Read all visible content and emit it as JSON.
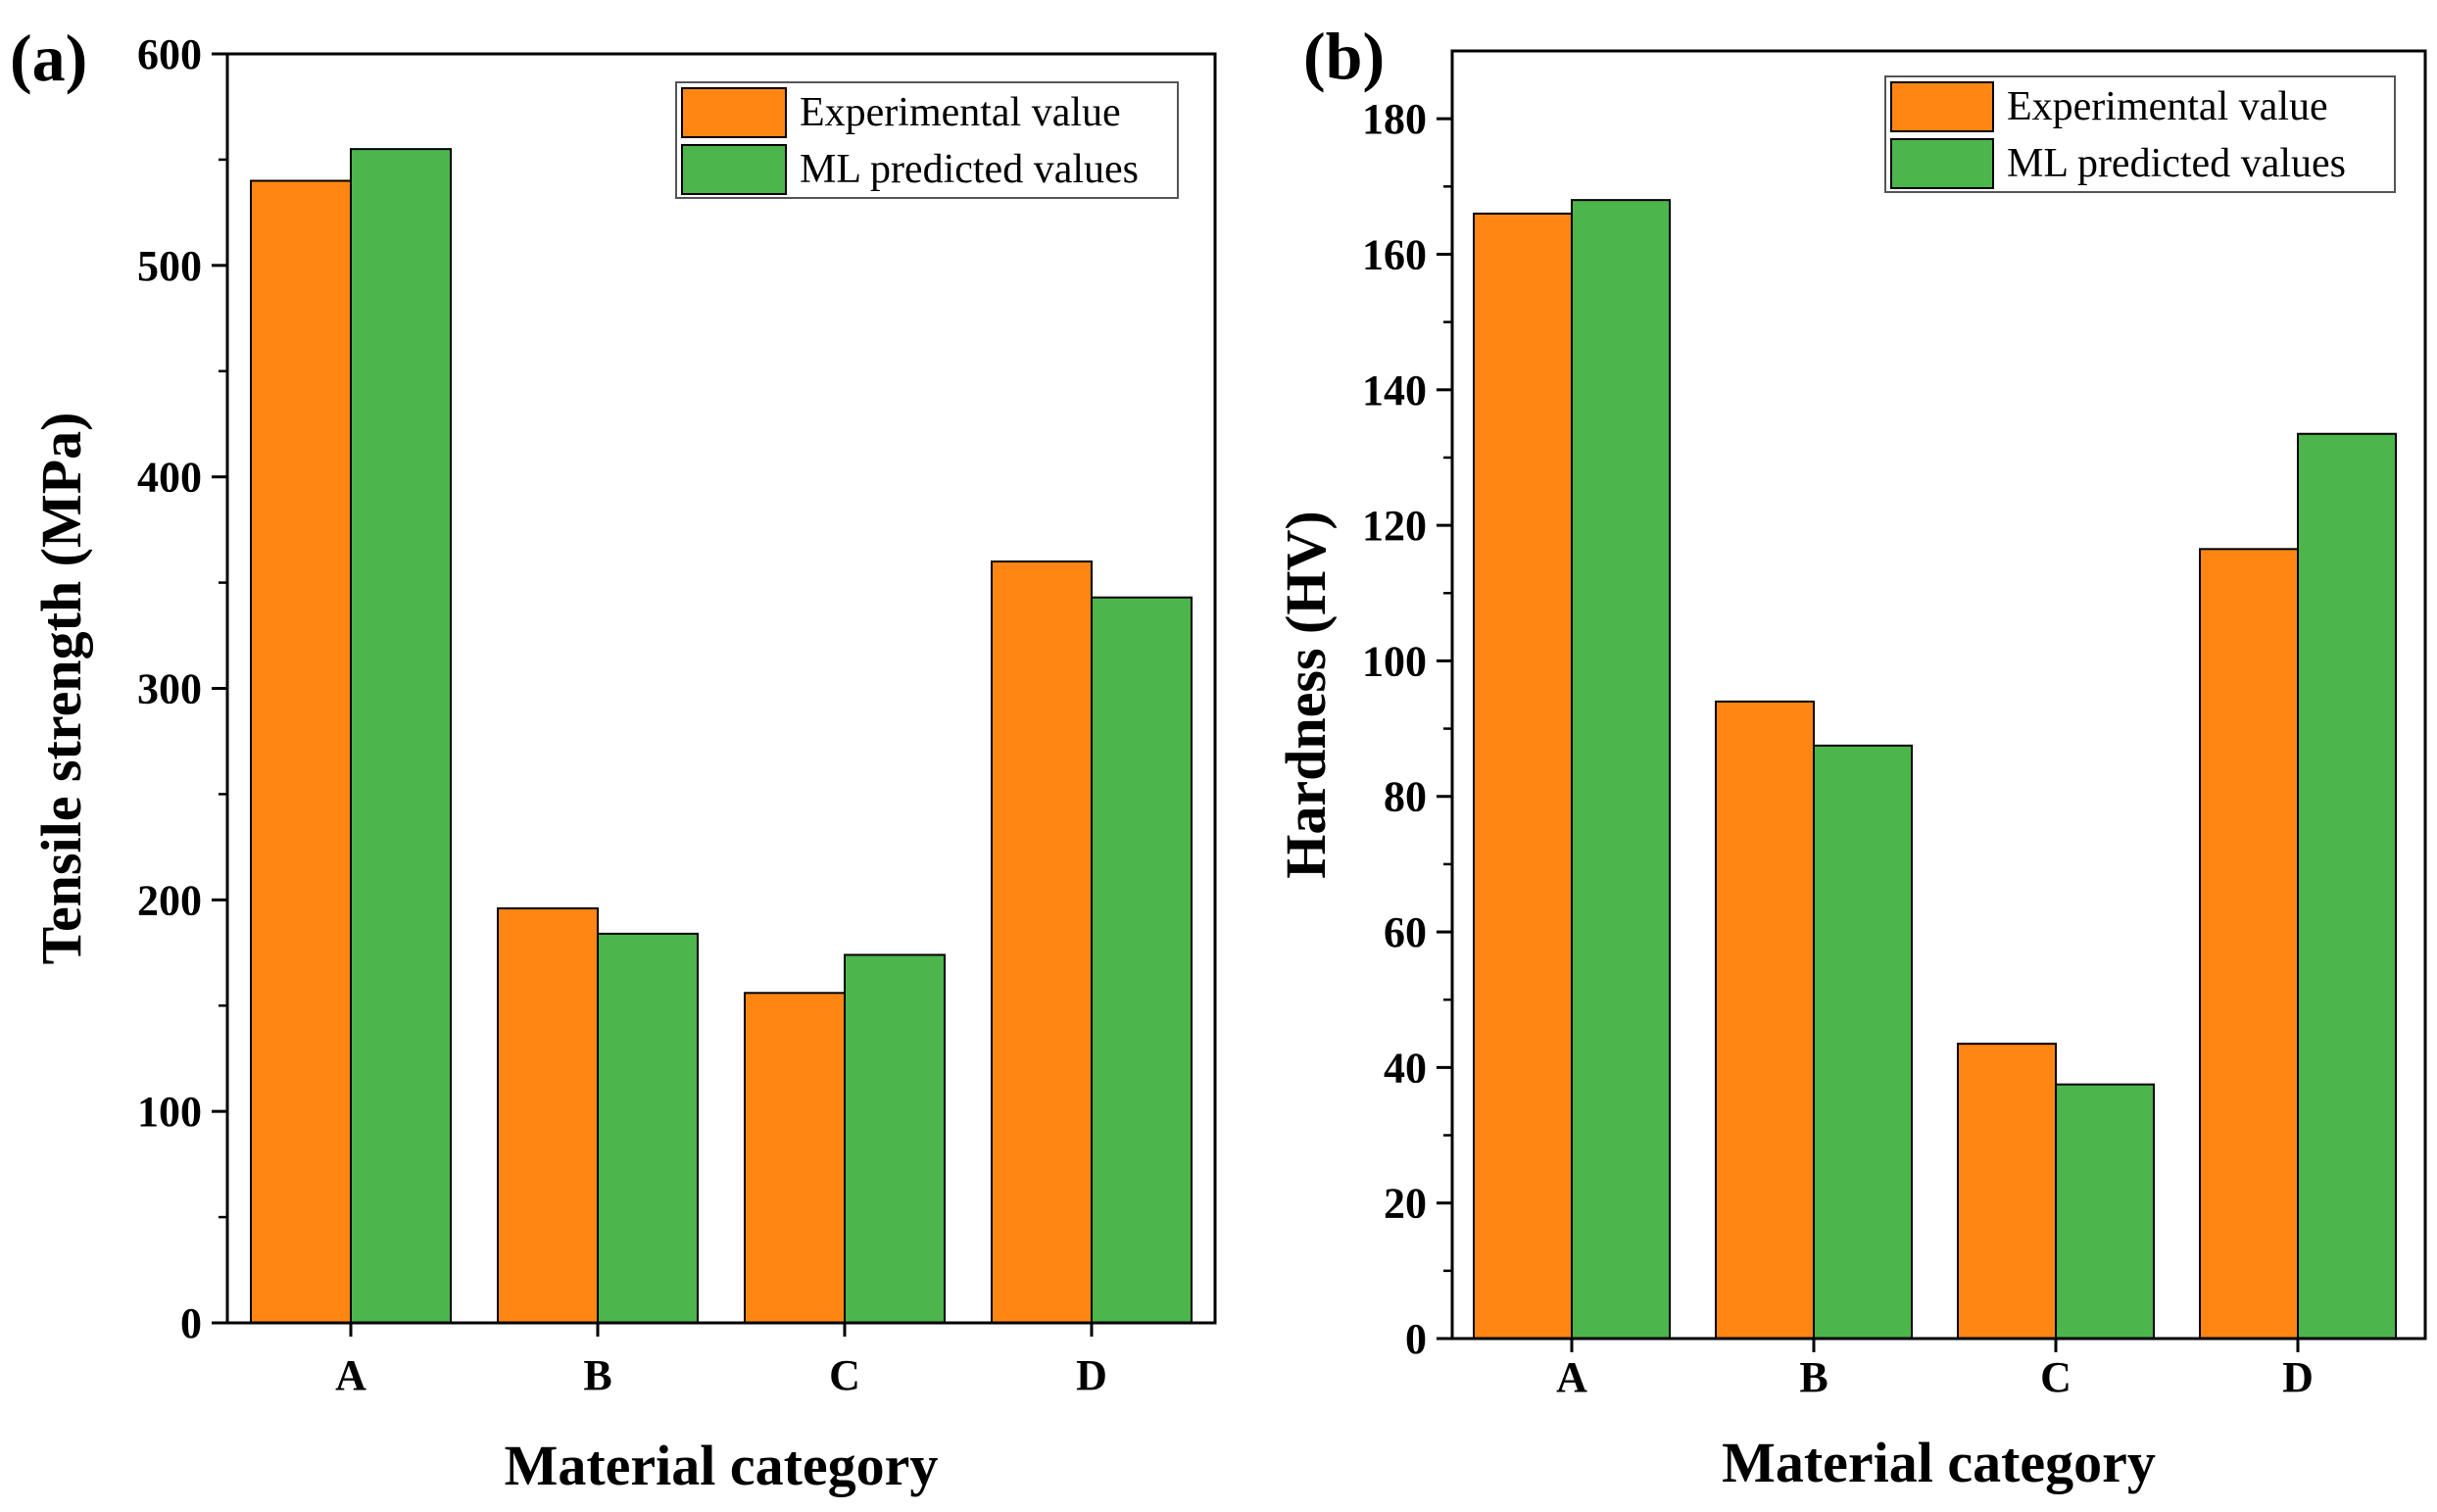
{
  "colors": {
    "experimental": "#ff8613",
    "predicted": "#4cb54c",
    "axis": "#000000",
    "bar_edge": "#000000"
  },
  "chart_data": [
    {
      "type": "bar",
      "panel_label": "(a)",
      "title": "",
      "xlabel": "Material category",
      "ylabel": "Tensile strength (MPa)",
      "categories": [
        "A",
        "B",
        "C",
        "D"
      ],
      "ylim": [
        0,
        600
      ],
      "yticks": [
        0,
        100,
        200,
        300,
        400,
        500,
        600
      ],
      "grid": false,
      "legend_position": "top-right",
      "series": [
        {
          "name": "Experimental value",
          "values": [
            540,
            196,
            156,
            360
          ]
        },
        {
          "name": "ML predicted values",
          "values": [
            555,
            184,
            174,
            343
          ]
        }
      ]
    },
    {
      "type": "bar",
      "panel_label": "(b)",
      "title": "",
      "xlabel": "Material category",
      "ylabel": "Hardness (HV)",
      "categories": [
        "A",
        "B",
        "C",
        "D"
      ],
      "ylim": [
        0,
        190
      ],
      "yticks": [
        0,
        20,
        40,
        60,
        80,
        100,
        120,
        140,
        160,
        180
      ],
      "grid": false,
      "legend_position": "top-right",
      "series": [
        {
          "name": "Experimental value",
          "values": [
            166,
            94,
            43.5,
            116.5
          ]
        },
        {
          "name": "ML predicted values",
          "values": [
            168,
            87.5,
            37.5,
            133.5
          ]
        }
      ]
    }
  ]
}
